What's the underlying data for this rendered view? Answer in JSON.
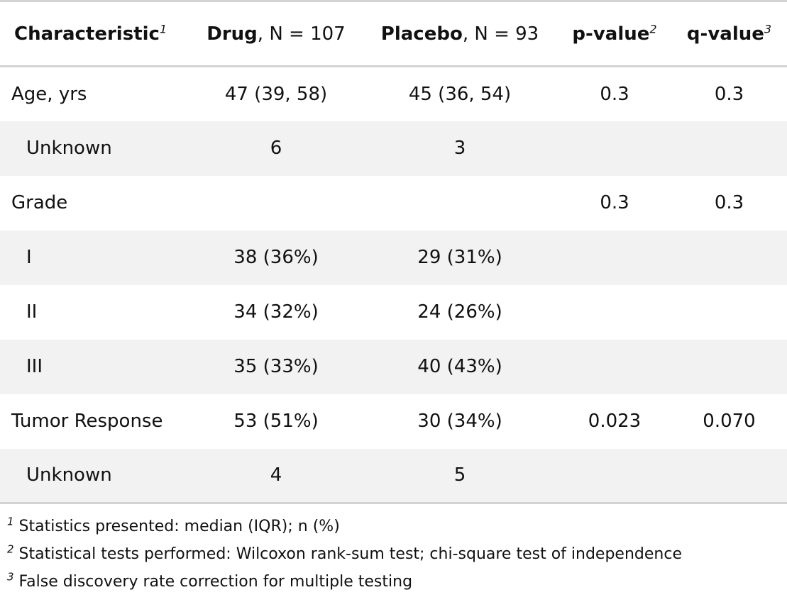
{
  "header": {
    "characteristic": "Characteristic",
    "characteristic_sup": "1",
    "drug_bold": "Drug",
    "drug_rest": ", N = 107",
    "placebo_bold": "Placebo",
    "placebo_rest": ", N = 93",
    "pvalue": "p-value",
    "pvalue_sup": "2",
    "qvalue": "q-value",
    "qvalue_sup": "3"
  },
  "rows": [
    {
      "label": "Age, yrs",
      "drug": "47 (39, 58)",
      "placebo": "45 (36, 54)",
      "p": "0.3",
      "q": "0.3"
    },
    {
      "label": "Unknown",
      "drug": "6",
      "placebo": "3",
      "p": "",
      "q": ""
    },
    {
      "label": "Grade",
      "drug": "",
      "placebo": "",
      "p": "0.3",
      "q": "0.3"
    },
    {
      "label": "I",
      "drug": "38 (36%)",
      "placebo": "29 (31%)",
      "p": "",
      "q": ""
    },
    {
      "label": "II",
      "drug": "34 (32%)",
      "placebo": "24 (26%)",
      "p": "",
      "q": ""
    },
    {
      "label": "III",
      "drug": "35 (33%)",
      "placebo": "40 (43%)",
      "p": "",
      "q": ""
    },
    {
      "label": "Tumor Response",
      "drug": "53 (51%)",
      "placebo": "30 (34%)",
      "p": "0.023",
      "q": "0.070"
    },
    {
      "label": "Unknown",
      "drug": "4",
      "placebo": "5",
      "p": "",
      "q": ""
    }
  ],
  "footnotes": [
    {
      "mark": "1",
      "text": "Statistics presented: median (IQR); n (%)"
    },
    {
      "mark": "2",
      "text": "Statistical tests performed: Wilcoxon rank-sum test; chi-square test of independence"
    },
    {
      "mark": "3",
      "text": "False discovery rate correction for multiple testing"
    }
  ]
}
